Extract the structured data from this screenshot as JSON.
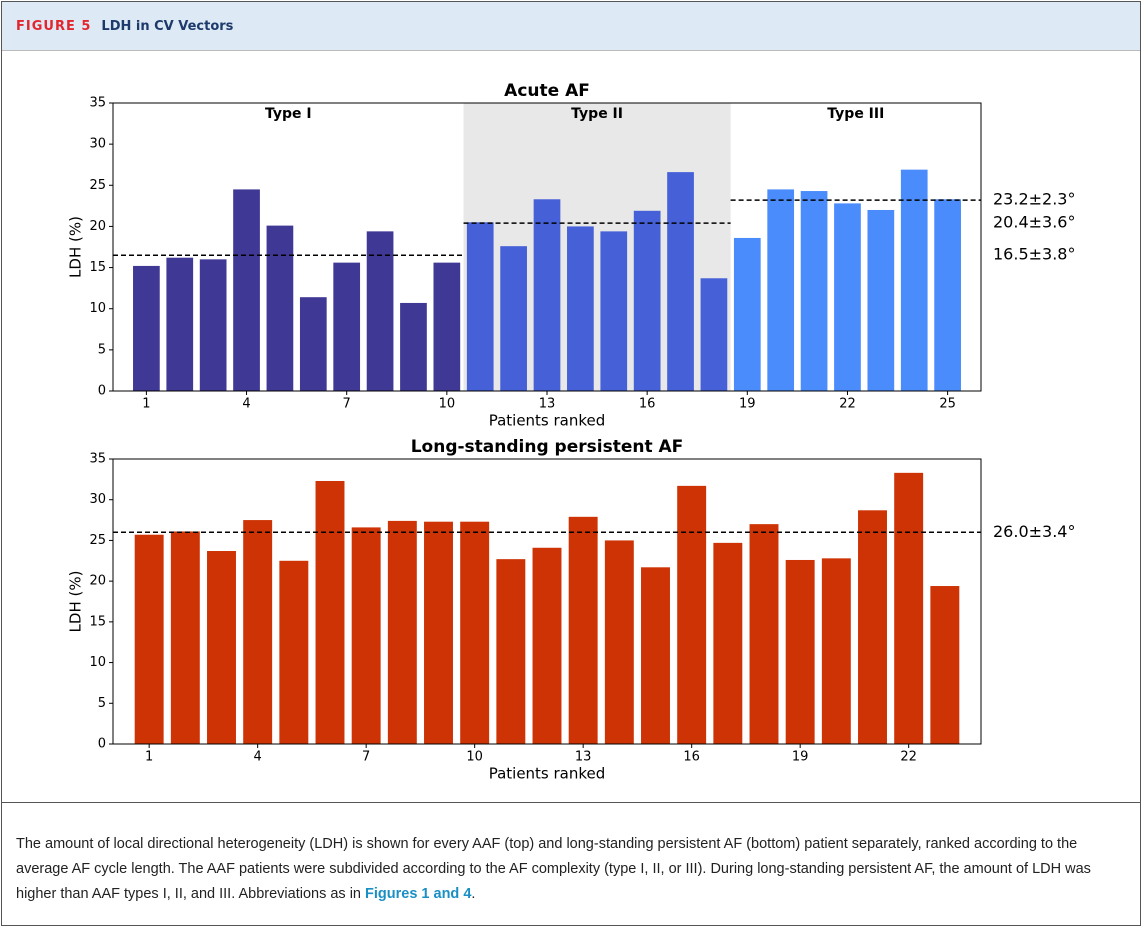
{
  "header": {
    "label": "FIGURE 5",
    "title": "LDH in CV Vectors"
  },
  "chart_data": [
    {
      "type": "bar",
      "title": "Acute AF",
      "xlabel": "Patients ranked",
      "ylabel": "LDH (%)",
      "x": [
        1,
        2,
        3,
        4,
        5,
        6,
        7,
        8,
        9,
        10,
        11,
        12,
        13,
        14,
        15,
        16,
        17,
        18,
        19,
        20,
        21,
        22,
        23,
        24,
        25
      ],
      "values": [
        15.2,
        16.2,
        16.0,
        24.5,
        20.1,
        11.4,
        15.6,
        19.4,
        10.7,
        15.6,
        20.5,
        17.6,
        23.3,
        20.0,
        19.4,
        21.9,
        26.6,
        13.7,
        18.6,
        24.5,
        24.3,
        22.8,
        22.0,
        26.9,
        23.3
      ],
      "xlim": [
        0,
        26
      ],
      "xticks": [
        1,
        4,
        7,
        10,
        13,
        16,
        19,
        22,
        25
      ],
      "ylim": [
        0,
        35
      ],
      "yticks": [
        0,
        5,
        10,
        15,
        20,
        25,
        30,
        35
      ],
      "groups": [
        {
          "label": "Type I",
          "span": [
            0,
            10.5
          ],
          "color": "#3f3895",
          "shaded": false,
          "mean": 16.5,
          "mean_label": "16.5±3.8°"
        },
        {
          "label": "Type II",
          "span": [
            10.5,
            18.5
          ],
          "color": "#4660d8",
          "shaded": true,
          "mean": 20.4,
          "mean_label": "20.4±3.6°"
        },
        {
          "label": "Type III",
          "span": [
            18.5,
            26
          ],
          "color": "#4a8cfb",
          "shaded": false,
          "mean": 23.2,
          "mean_label": "23.2±2.3°"
        }
      ]
    },
    {
      "type": "bar",
      "title": "Long-standing persistent AF",
      "xlabel": "Patients ranked",
      "ylabel": "LDH (%)",
      "x": [
        1,
        2,
        3,
        4,
        5,
        6,
        7,
        8,
        9,
        10,
        11,
        12,
        13,
        14,
        15,
        16,
        17,
        18,
        19,
        20,
        21,
        22,
        23
      ],
      "values": [
        25.7,
        26.1,
        23.7,
        27.5,
        22.5,
        32.3,
        26.6,
        27.4,
        27.3,
        27.3,
        22.7,
        24.1,
        27.9,
        25.0,
        21.7,
        31.7,
        24.7,
        27.0,
        22.6,
        22.8,
        28.7,
        33.3,
        19.4
      ],
      "xlim": [
        0,
        24
      ],
      "xticks": [
        1,
        4,
        7,
        10,
        13,
        16,
        19,
        22
      ],
      "ylim": [
        0,
        35
      ],
      "yticks": [
        0,
        5,
        10,
        15,
        20,
        25,
        30,
        35
      ],
      "groups": [
        {
          "span": [
            0,
            24
          ],
          "color": "#cd3304",
          "shaded": false,
          "mean": 26.0,
          "mean_label": "26.0±3.4°"
        }
      ]
    }
  ],
  "caption": {
    "text": "The amount of local directional heterogeneity (LDH) is shown for every AAF (top) and long-standing persistent AF (bottom) patient separately, ranked according to the average AF cycle length. The AAF patients were subdivided according to the AF complexity (type I, II, or III). During long-standing persistent AF, the amount of LDH was higher than AAF types I, II, and III. Abbreviations as in ",
    "link": "Figures 1 and 4",
    "end": "."
  }
}
